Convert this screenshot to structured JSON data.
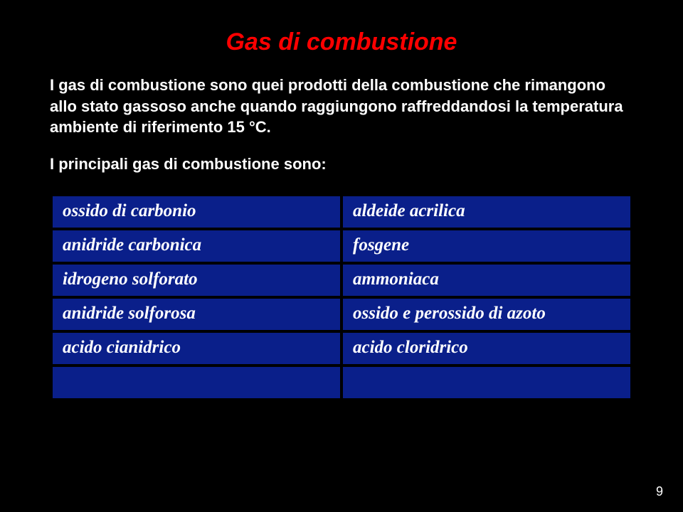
{
  "slide": {
    "title": "Gas di combustione",
    "intro": "I gas di combustione sono quei prodotti della combustione che rimangono allo stato gassoso anche quando raggiungono raffreddandosi la temperatura ambiente di riferimento 15 °C.",
    "lead": "I principali gas di combustione sono:",
    "table": {
      "rows": [
        {
          "left": "ossido di carbonio",
          "right": "aldeide acrilica"
        },
        {
          "left": "anidride carbonica",
          "right": "fosgene"
        },
        {
          "left": "idrogeno solforato",
          "right": "ammoniaca"
        },
        {
          "left": "anidride solforosa",
          "right": "ossido e perossido di azoto"
        },
        {
          "left": "acido cianidrico",
          "right": "acido cloridrico"
        },
        {
          "left": "",
          "right": ""
        }
      ],
      "cell_bg": "#0a1f8a",
      "cell_color": "#ffffff",
      "cell_fontsize": 25,
      "cell_fontstyle": "italic",
      "cell_fontweight": "bold"
    },
    "page_number": "9",
    "colors": {
      "background": "#000000",
      "title": "#ff0000",
      "body_text": "#ffffff"
    },
    "fonts": {
      "title_size": 34,
      "body_size": 22
    }
  }
}
